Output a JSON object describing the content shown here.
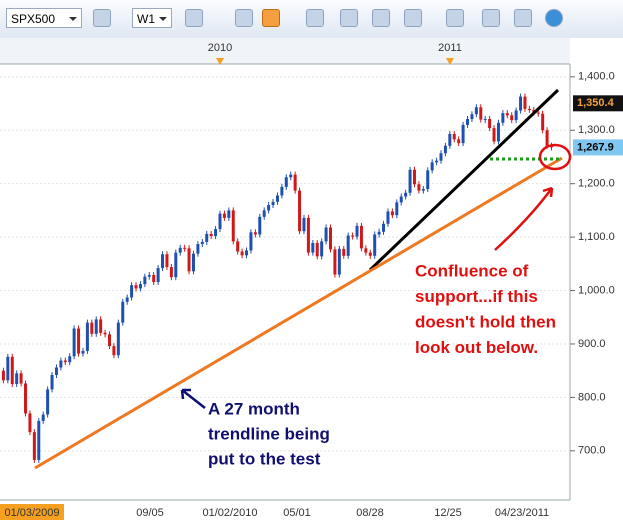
{
  "toolbar": {
    "symbol": "SPX500",
    "timeframe": "W1"
  },
  "chart": {
    "year_markers": [
      "2010",
      "2011"
    ],
    "x_labels": [
      "01/03/2009",
      "09/05",
      "01/02/2010",
      "05/01",
      "08/28",
      "12/25",
      "04/23/2011"
    ],
    "ylim": [
      608,
      1424
    ],
    "price_ticks": [
      {
        "value": 1400,
        "label": "1,400.0"
      },
      {
        "value": 1300,
        "label": "1,300.0"
      },
      {
        "value": 1200,
        "label": "1,200.0"
      },
      {
        "value": 1100,
        "label": "1,100.0"
      },
      {
        "value": 1000,
        "label": "1,000.0"
      },
      {
        "value": 900,
        "label": "900.0"
      },
      {
        "value": 800,
        "label": "800.0"
      },
      {
        "value": 700,
        "label": "700.0"
      }
    ],
    "price_markers": [
      {
        "value": 1350.4,
        "label": "1,350.4"
      },
      {
        "value": 1267.9,
        "label": "1,267.9"
      }
    ],
    "closes": [
      850,
      832,
      876,
      825,
      845,
      826,
      770,
      735,
      683,
      756,
      768,
      815,
      842,
      856,
      869,
      866,
      877,
      929,
      882,
      887,
      940,
      919,
      946,
      921,
      918,
      896,
      879,
      940,
      979,
      987,
      1010,
      1004,
      1012,
      1026,
      1029,
      1016,
      1042,
      1068,
      1044,
      1025,
      1071,
      1080,
      1079,
      1036,
      1069,
      1087,
      1091,
      1106,
      1102,
      1115,
      1144,
      1136,
      1150,
      1092,
      1073,
      1066,
      1075,
      1109,
      1105,
      1138,
      1150,
      1160,
      1166,
      1178,
      1194,
      1212,
      1217,
      1187,
      1111,
      1136,
      1071,
      1089,
      1064,
      1092,
      1118,
      1077,
      1030,
      1078,
      1065,
      1103,
      1101,
      1121,
      1079,
      1071,
      1065,
      1105,
      1110,
      1125,
      1148,
      1141,
      1165,
      1176,
      1183,
      1226,
      1199,
      1187,
      1190,
      1225,
      1240,
      1243,
      1257,
      1271,
      1293,
      1283,
      1276,
      1310,
      1321,
      1330,
      1343,
      1320,
      1321,
      1304,
      1279,
      1314,
      1332,
      1328,
      1319,
      1337,
      1363,
      1340,
      1338,
      1333,
      1331,
      1300,
      1271,
      1268
    ],
    "annotations": {
      "support": [
        "Confluence of",
        "support...if this",
        "doesn't hold then",
        "look out below."
      ],
      "trendline": [
        "A 27 month",
        "trendline being",
        "put to the test"
      ]
    }
  }
}
